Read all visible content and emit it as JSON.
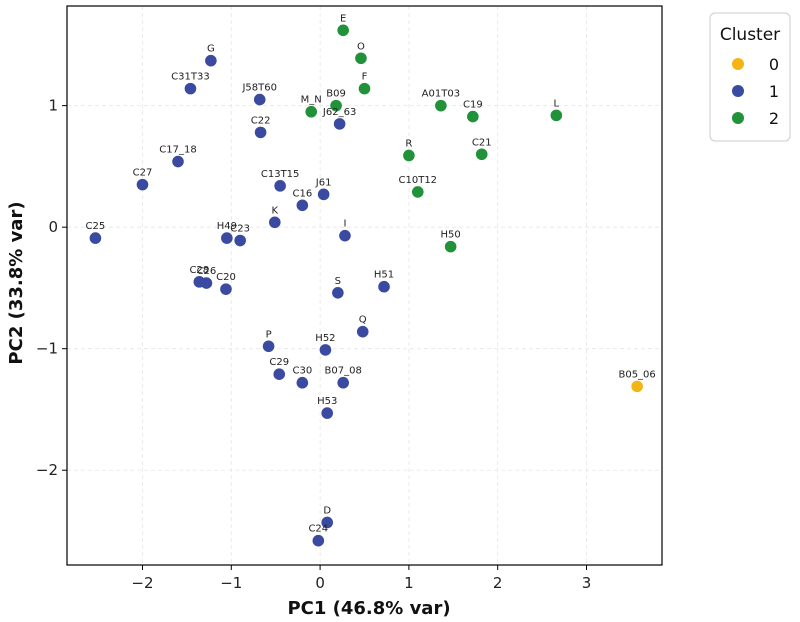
{
  "chart_data": {
    "type": "scatter",
    "title": "",
    "xlabel": "PC1 (46.8% var)",
    "ylabel": "PC2 (33.8% var)",
    "xlim": [
      -2.85,
      3.85
    ],
    "ylim": [
      -2.78,
      1.82
    ],
    "xticks": [
      -2,
      -1,
      0,
      1,
      2,
      3
    ],
    "xtick_labels": [
      "−2",
      "−1",
      "0",
      "1",
      "2",
      "3"
    ],
    "yticks": [
      -2,
      -1,
      0,
      1
    ],
    "ytick_labels": [
      "−2",
      "−1",
      "0",
      "1"
    ],
    "grid": true,
    "legend": {
      "title": "Cluster",
      "placement": "outside-top-right",
      "entries": [
        {
          "label": "0",
          "cluster": 0
        },
        {
          "label": "1",
          "cluster": 1
        },
        {
          "label": "2",
          "cluster": 2
        }
      ]
    },
    "colors": {
      "0": "#f5b416",
      "1": "#3a4aa0",
      "2": "#21913a"
    },
    "points": [
      {
        "label": "E",
        "x": 0.26,
        "y": 1.62,
        "cluster": 2
      },
      {
        "label": "O",
        "x": 0.46,
        "y": 1.39,
        "cluster": 2
      },
      {
        "label": "F",
        "x": 0.5,
        "y": 1.14,
        "cluster": 2
      },
      {
        "label": "B09",
        "x": 0.18,
        "y": 1.0,
        "cluster": 2
      },
      {
        "label": "M_N",
        "x": -0.1,
        "y": 0.95,
        "cluster": 2
      },
      {
        "label": "J62_63",
        "x": 0.22,
        "y": 0.85,
        "cluster": 1
      },
      {
        "label": "G",
        "x": -1.23,
        "y": 1.37,
        "cluster": 1
      },
      {
        "label": "C31T33",
        "x": -1.46,
        "y": 1.14,
        "cluster": 1
      },
      {
        "label": "J58T60",
        "x": -0.68,
        "y": 1.05,
        "cluster": 1
      },
      {
        "label": "C22",
        "x": -0.67,
        "y": 0.78,
        "cluster": 1
      },
      {
        "label": "C17_18",
        "x": -1.6,
        "y": 0.54,
        "cluster": 1
      },
      {
        "label": "C27",
        "x": -2.0,
        "y": 0.35,
        "cluster": 1
      },
      {
        "label": "C13T15",
        "x": -0.45,
        "y": 0.34,
        "cluster": 1
      },
      {
        "label": "J61",
        "x": 0.04,
        "y": 0.27,
        "cluster": 1
      },
      {
        "label": "C16",
        "x": -0.2,
        "y": 0.18,
        "cluster": 1
      },
      {
        "label": "K",
        "x": -0.51,
        "y": 0.04,
        "cluster": 1
      },
      {
        "label": "I",
        "x": 0.28,
        "y": -0.07,
        "cluster": 1
      },
      {
        "label": "C25",
        "x": -2.53,
        "y": -0.09,
        "cluster": 1
      },
      {
        "label": "H49",
        "x": -1.05,
        "y": -0.09,
        "cluster": 1
      },
      {
        "label": "C23",
        "x": -0.9,
        "y": -0.11,
        "cluster": 1
      },
      {
        "label": "C28",
        "x": -1.36,
        "y": -0.45,
        "cluster": 1
      },
      {
        "label": "C20",
        "x": -1.06,
        "y": -0.51,
        "cluster": 1
      },
      {
        "label": "C26",
        "x": -1.28,
        "y": -0.46,
        "cluster": 1
      },
      {
        "label": "S",
        "x": 0.2,
        "y": -0.54,
        "cluster": 1
      },
      {
        "label": "H51",
        "x": 0.72,
        "y": -0.49,
        "cluster": 1
      },
      {
        "label": "Q",
        "x": 0.48,
        "y": -0.86,
        "cluster": 1
      },
      {
        "label": "P",
        "x": -0.58,
        "y": -0.98,
        "cluster": 1
      },
      {
        "label": "H52",
        "x": 0.06,
        "y": -1.01,
        "cluster": 1
      },
      {
        "label": "C29",
        "x": -0.46,
        "y": -1.21,
        "cluster": 1
      },
      {
        "label": "C30",
        "x": -0.2,
        "y": -1.28,
        "cluster": 1
      },
      {
        "label": "B07_08",
        "x": 0.26,
        "y": -1.28,
        "cluster": 1
      },
      {
        "label": "H53",
        "x": 0.08,
        "y": -1.53,
        "cluster": 1
      },
      {
        "label": "D",
        "x": 0.08,
        "y": -2.43,
        "cluster": 1
      },
      {
        "label": "C24",
        "x": -0.02,
        "y": -2.58,
        "cluster": 1
      },
      {
        "label": "A01T03",
        "x": 1.36,
        "y": 1.0,
        "cluster": 2
      },
      {
        "label": "C19",
        "x": 1.72,
        "y": 0.91,
        "cluster": 2
      },
      {
        "label": "L",
        "x": 2.66,
        "y": 0.92,
        "cluster": 2
      },
      {
        "label": "R",
        "x": 1.0,
        "y": 0.59,
        "cluster": 2
      },
      {
        "label": "C21",
        "x": 1.82,
        "y": 0.6,
        "cluster": 2
      },
      {
        "label": "C10T12",
        "x": 1.1,
        "y": 0.29,
        "cluster": 2
      },
      {
        "label": "H50",
        "x": 1.47,
        "y": -0.16,
        "cluster": 2
      },
      {
        "label": "B05_06",
        "x": 3.57,
        "y": -1.31,
        "cluster": 0
      }
    ]
  }
}
